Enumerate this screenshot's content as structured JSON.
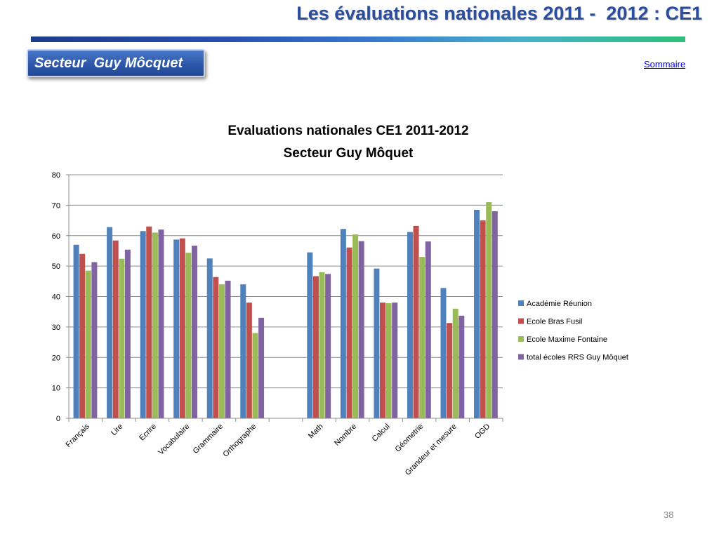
{
  "slide": {
    "title": "Les évaluations nationales 2011 -  2012 : CE1",
    "sector_label": "Secteur  Guy Môcquet",
    "sommaire_link": "Sommaire",
    "page_number": "38"
  },
  "colors": {
    "title": "#2a4e9c",
    "series": [
      "#4f81bd",
      "#c0504d",
      "#9bbb59",
      "#8064a2"
    ]
  },
  "chart_data": {
    "type": "bar",
    "title_lines": [
      "Evaluations nationales CE1 2011-2012",
      "Secteur Guy Môquet"
    ],
    "xlabel": "",
    "ylabel": "",
    "ylim": [
      0,
      80
    ],
    "yticks": [
      0,
      10,
      20,
      30,
      40,
      50,
      60,
      70,
      80
    ],
    "grid": true,
    "legend_position": "right",
    "categories": [
      "Français",
      "Lire",
      "Ecrire",
      "Vocabulaire",
      "Grammaire",
      "Orthographe",
      "",
      "Math",
      "Nombre",
      "Calcul",
      "Géometrie",
      "Grandeur et mesure",
      "OGD"
    ],
    "series": [
      {
        "name": "Académie Réunion",
        "values": [
          57,
          62.8,
          61.5,
          58.7,
          52.5,
          44,
          null,
          54.5,
          62.2,
          49.2,
          61.2,
          42.8,
          68.5
        ]
      },
      {
        "name": "Ecole Bras Fusil",
        "values": [
          54,
          58.4,
          63,
          59.1,
          46.4,
          38,
          null,
          46.7,
          56.1,
          38,
          63.2,
          31.3,
          65
        ]
      },
      {
        "name": "Ecole Maxime Fontaine",
        "values": [
          48.5,
          52.4,
          61,
          54.4,
          44,
          28,
          null,
          48,
          60.4,
          37.8,
          53,
          36,
          71
        ]
      },
      {
        "name": "total écoles RRS Guy Môquet",
        "values": [
          51.3,
          55.4,
          62,
          56.7,
          45.2,
          33,
          null,
          47.4,
          58.2,
          38,
          58.1,
          33.7,
          68
        ]
      }
    ]
  }
}
